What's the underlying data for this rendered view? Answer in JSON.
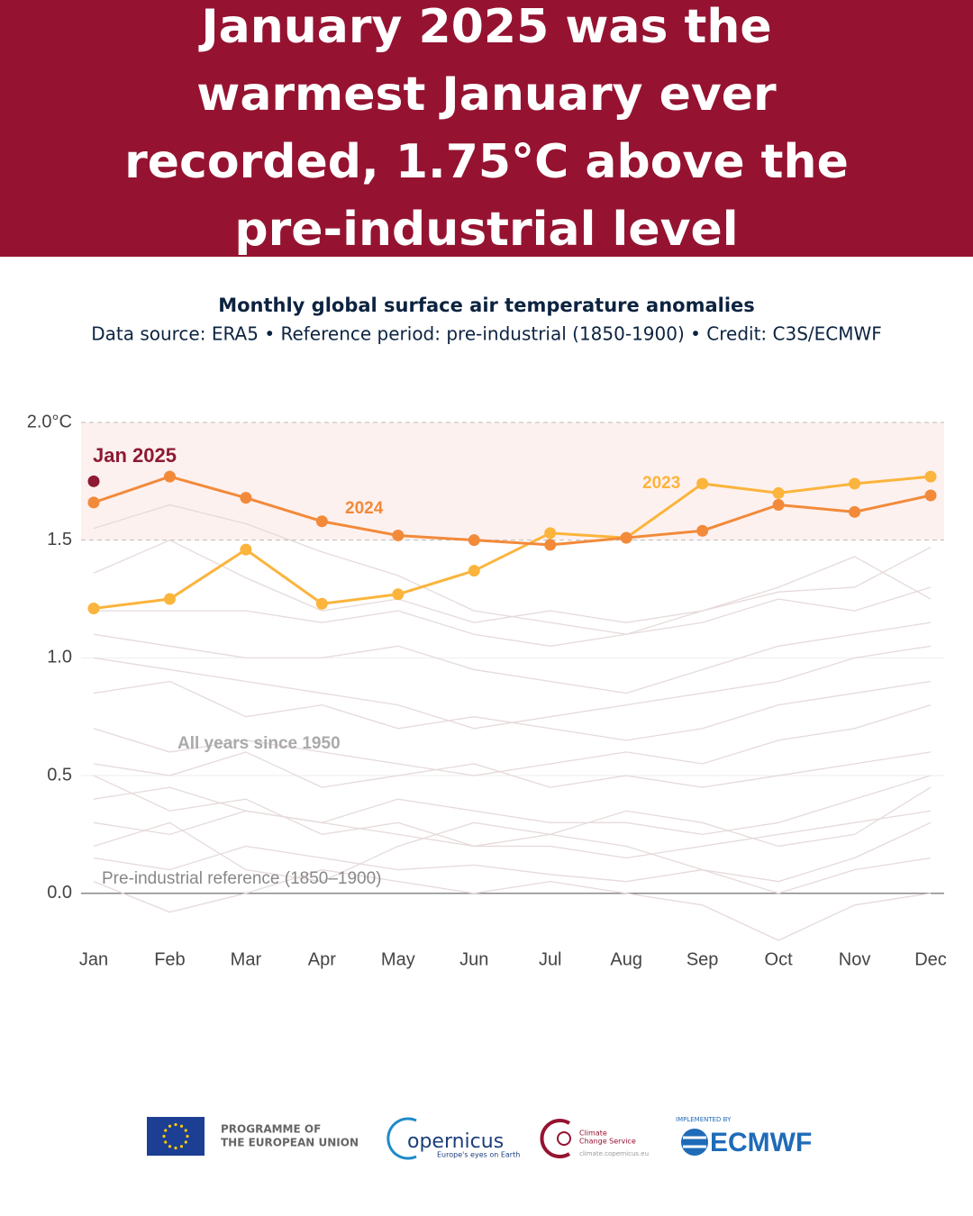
{
  "header": {
    "title": "January 2025 was the warmest January ever recorded, 1.75°C above the pre-industrial level"
  },
  "chart_data": {
    "type": "line",
    "title": "Monthly global surface air temperature anomalies",
    "subtitle": "Data source: ERA5 • Reference period: pre-industrial (1850-1900) • Credit: C3S/ECMWF",
    "categories": [
      "Jan",
      "Feb",
      "Mar",
      "Apr",
      "May",
      "Jun",
      "Jul",
      "Aug",
      "Sep",
      "Oct",
      "Nov",
      "Dec"
    ],
    "ylim": [
      -0.2,
      2.0
    ],
    "yticks": [
      {
        "value": 0,
        "label": "0.0"
      },
      0.5,
      {
        "value": 1,
        "label": "1.0"
      },
      1.5,
      {
        "value": 2,
        "label": "2.0°C"
      }
    ],
    "grid": true,
    "band": {
      "from": 1.5,
      "to": 2.0,
      "color": "#fdf1ef"
    },
    "annotations": [
      "All years since 1950",
      "Pre-industrial reference (1850–1900)"
    ],
    "series": [
      {
        "color": "#e6dada",
        "values": [
          0.05,
          -0.08,
          0.0,
          0.1,
          0.05,
          0.0,
          0.05,
          0.0,
          -0.05,
          -0.2,
          -0.05,
          0.0
        ]
      },
      {
        "color": "#e6dada",
        "values": [
          0.15,
          0.1,
          0.2,
          0.15,
          0.1,
          0.12,
          0.08,
          0.05,
          0.1,
          0.0,
          0.1,
          0.15
        ]
      },
      {
        "color": "#e6dada",
        "values": [
          0.2,
          0.3,
          0.1,
          0.05,
          0.2,
          0.3,
          0.25,
          0.2,
          0.1,
          0.05,
          0.15,
          0.3
        ]
      },
      {
        "color": "#e6dada",
        "values": [
          0.3,
          0.25,
          0.35,
          0.3,
          0.25,
          0.2,
          0.2,
          0.15,
          0.2,
          0.25,
          0.3,
          0.35
        ]
      },
      {
        "color": "#e6dada",
        "values": [
          0.4,
          0.45,
          0.35,
          0.3,
          0.4,
          0.35,
          0.3,
          0.3,
          0.25,
          0.3,
          0.4,
          0.5
        ]
      },
      {
        "color": "#e6dada",
        "values": [
          0.5,
          0.35,
          0.4,
          0.25,
          0.3,
          0.2,
          0.25,
          0.35,
          0.3,
          0.2,
          0.25,
          0.45
        ]
      },
      {
        "color": "#e6dada",
        "values": [
          0.55,
          0.5,
          0.6,
          0.45,
          0.5,
          0.55,
          0.45,
          0.5,
          0.45,
          0.5,
          0.55,
          0.6
        ]
      },
      {
        "color": "#e6dada",
        "values": [
          0.7,
          0.6,
          0.65,
          0.6,
          0.55,
          0.5,
          0.55,
          0.6,
          0.55,
          0.65,
          0.7,
          0.8
        ]
      },
      {
        "color": "#e6dada",
        "values": [
          0.85,
          0.9,
          0.75,
          0.8,
          0.7,
          0.75,
          0.7,
          0.65,
          0.7,
          0.8,
          0.85,
          0.9
        ]
      },
      {
        "color": "#e6dada",
        "values": [
          1.0,
          0.95,
          0.9,
          0.85,
          0.8,
          0.7,
          0.75,
          0.8,
          0.85,
          0.9,
          1.0,
          1.05
        ]
      },
      {
        "color": "#e6dada",
        "values": [
          1.1,
          1.05,
          1.0,
          1.0,
          1.05,
          0.95,
          0.9,
          0.85,
          0.95,
          1.05,
          1.1,
          1.15
        ]
      },
      {
        "color": "#e6dada",
        "values": [
          1.2,
          1.2,
          1.2,
          1.15,
          1.2,
          1.1,
          1.05,
          1.1,
          1.15,
          1.25,
          1.2,
          1.3
        ]
      },
      {
        "color": "#e6dada",
        "values": [
          1.36,
          1.5,
          1.34,
          1.2,
          1.25,
          1.15,
          1.2,
          1.15,
          1.2,
          1.3,
          1.43,
          1.25
        ]
      },
      {
        "color": "#e6dada",
        "values": [
          1.55,
          1.65,
          1.57,
          1.45,
          1.35,
          1.2,
          1.15,
          1.1,
          1.2,
          1.28,
          1.3,
          1.47
        ]
      },
      {
        "name": "2023",
        "color": "#fbb43c",
        "markers": true,
        "values": [
          1.21,
          1.25,
          1.46,
          1.23,
          1.27,
          1.37,
          1.53,
          1.51,
          1.74,
          1.7,
          1.74,
          1.77
        ]
      },
      {
        "name": "2024",
        "color": "#f28a3a",
        "markers": true,
        "values": [
          1.66,
          1.77,
          1.68,
          1.58,
          1.52,
          1.5,
          1.48,
          1.51,
          1.54,
          1.65,
          1.62,
          1.69
        ]
      },
      {
        "name": "Jan 2025",
        "color": "#8e1a34",
        "markers": true,
        "values": [
          1.75,
          null,
          null,
          null,
          null,
          null,
          null,
          null,
          null,
          null,
          null,
          null
        ]
      }
    ]
  },
  "footer": {
    "eu_lines": [
      "PROGRAMME OF",
      "THE EUROPEAN UNION"
    ],
    "copernicus": "opernicus",
    "copernicus_tagline": "Europe's eyes on Earth",
    "c3s_lines": [
      "Climate",
      "Change Service"
    ],
    "c3s_url": "climate.copernicus.eu",
    "implemented_by": "IMPLEMENTED BY",
    "ecmwf": "ECMWF"
  }
}
